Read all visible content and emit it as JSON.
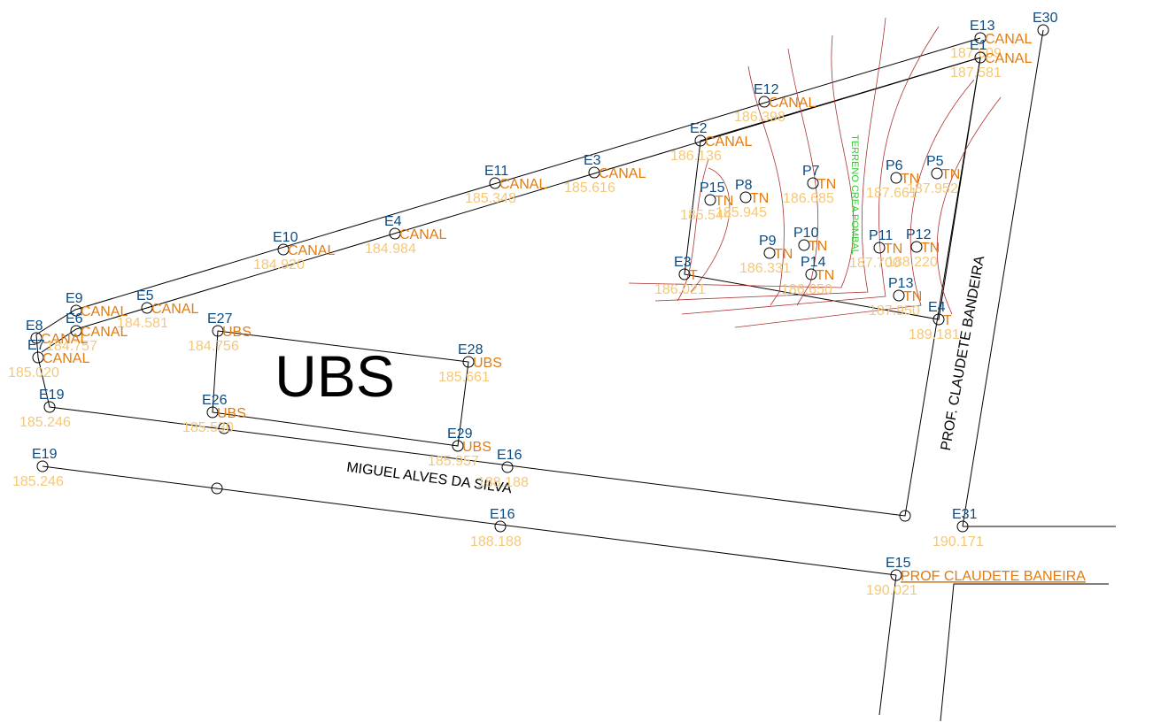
{
  "points": [
    {
      "id": "E13",
      "code": "CANAL",
      "elevation": "187.609"
    },
    {
      "id": "E30"
    },
    {
      "id": "E1",
      "code": "CANAL",
      "elevation": "187.581"
    },
    {
      "id": "E12",
      "code": "CANAL",
      "elevation": "186.398"
    },
    {
      "id": "E2",
      "code": "CANAL",
      "elevation": "186.136"
    },
    {
      "id": "E3",
      "code": "CANAL",
      "elevation": "185.616"
    },
    {
      "id": "E11",
      "code": "CANAL",
      "elevation": "185.348"
    },
    {
      "id": "E4",
      "code": "CANAL",
      "elevation": "184.984"
    },
    {
      "id": "E10",
      "code": "CANAL",
      "elevation": "184.920"
    },
    {
      "id": "E5",
      "code": "CANAL",
      "elevation": "184.581"
    },
    {
      "id": "E9",
      "code": "CANAL"
    },
    {
      "id": "E6",
      "code": "CANAL",
      "elevation": "184.757"
    },
    {
      "id": "E8",
      "code": "CANAL"
    },
    {
      "id": "E7",
      "code": "CANAL",
      "elevation": "185.020"
    },
    {
      "id": "E19",
      "elevation": "185.246"
    },
    {
      "id": "E19",
      "elevation": "185.246"
    },
    {
      "id": "E27",
      "code": "UBS",
      "elevation": "184.756"
    },
    {
      "id": "E28",
      "code": "UBS",
      "elevation": "185.661"
    },
    {
      "id": "E26",
      "code": "UBS",
      "elevation": "185.530"
    },
    {
      "id": "E29",
      "code": "UBS",
      "elevation": "185.957"
    },
    {
      "id": "E16",
      "elevation": "188.188"
    },
    {
      "id": "E16",
      "elevation": "188.188"
    },
    {
      "id": "E3",
      "code": "T",
      "elevation": "186.021"
    },
    {
      "id": "E4",
      "code": "T",
      "elevation": "189.181"
    },
    {
      "id": "E15",
      "code": "PROF CLAUDETE BANEIRA",
      "elevation": "190.021"
    },
    {
      "id": "E31",
      "elevation": "190.171"
    },
    {
      "id": "P15",
      "code": "TN",
      "elevation": "185.544"
    },
    {
      "id": "P8",
      "code": "TN",
      "elevation": "185.945"
    },
    {
      "id": "P7",
      "code": "TN",
      "elevation": "186.685"
    },
    {
      "id": "P6",
      "code": "TN",
      "elevation": "187.661"
    },
    {
      "id": "P5",
      "code": "TN",
      "elevation": "187.952"
    },
    {
      "id": "P9",
      "code": "TN",
      "elevation": "186.331"
    },
    {
      "id": "P10",
      "code": "TN"
    },
    {
      "id": "P14",
      "code": "TN",
      "elevation": "186.650"
    },
    {
      "id": "P11",
      "code": "TN",
      "elevation": "187.700"
    },
    {
      "id": "P12",
      "code": "TN",
      "elevation": "188.220"
    },
    {
      "id": "P13",
      "code": "TN",
      "elevation": "187.950"
    }
  ],
  "labels": {
    "building": "UBS",
    "street_1": "MIGUEL ALVES DA SILVA",
    "street_2": "PROF. CLAUDETE BANDEIRA",
    "terrain": "TERRENO CREA POMBAL"
  }
}
